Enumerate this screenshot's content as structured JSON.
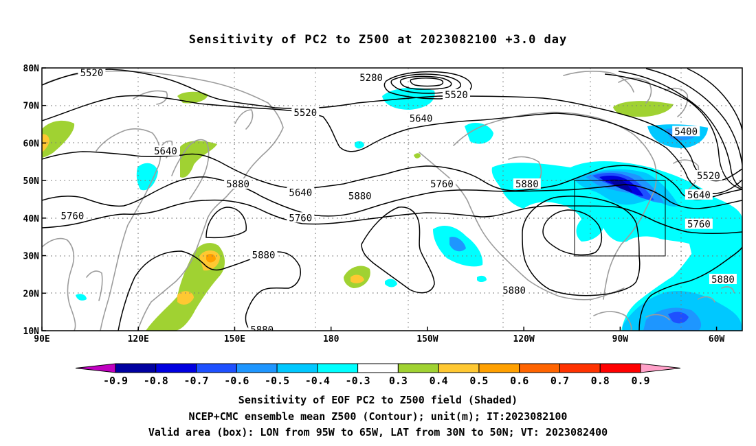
{
  "title": "Sensitivity of PC2 to Z500 at 2023082100 +3.0 day",
  "axes": {
    "lat_ticks": [
      "80N",
      "70N",
      "60N",
      "50N",
      "40N",
      "30N",
      "20N",
      "10N"
    ],
    "lon_ticks": [
      "90E",
      "120E",
      "150E",
      "180",
      "150W",
      "120W",
      "90W",
      "60W"
    ],
    "lon_range_deg_east": [
      90,
      308
    ],
    "lat_range": [
      10,
      80
    ]
  },
  "contour_labels": [
    {
      "text": "5520",
      "lon": 105.5,
      "lat": 78.7
    },
    {
      "text": "5280",
      "lon": 192.5,
      "lat": 77.4
    },
    {
      "text": "5520",
      "lon": 219,
      "lat": 72.9
    },
    {
      "text": "5520",
      "lon": 172,
      "lat": 68.1
    },
    {
      "text": "5640",
      "lon": 208,
      "lat": 66.6
    },
    {
      "text": "5400",
      "lon": 290.5,
      "lat": 63.1
    },
    {
      "text": "5640",
      "lon": 128.5,
      "lat": 57.9
    },
    {
      "text": "5520",
      "lon": 297.5,
      "lat": 51.3
    },
    {
      "text": "5880",
      "lon": 151,
      "lat": 49.1
    },
    {
      "text": "5760",
      "lon": 214.5,
      "lat": 49.1
    },
    {
      "text": "5880",
      "lon": 241,
      "lat": 49.1
    },
    {
      "text": "5640",
      "lon": 170.5,
      "lat": 46.8
    },
    {
      "text": "5880",
      "lon": 189,
      "lat": 45.9
    },
    {
      "text": "5640",
      "lon": 294.5,
      "lat": 46.2
    },
    {
      "text": "5760",
      "lon": 99.5,
      "lat": 40.6
    },
    {
      "text": "5760",
      "lon": 170.5,
      "lat": 40.1
    },
    {
      "text": "5760",
      "lon": 294.5,
      "lat": 38.4
    },
    {
      "text": "5880",
      "lon": 159,
      "lat": 30.2
    },
    {
      "text": "5880",
      "lon": 302,
      "lat": 23.7
    },
    {
      "text": "5880",
      "lon": 237,
      "lat": 20.8
    },
    {
      "text": "5880",
      "lon": 158.5,
      "lat": 10.3
    }
  ],
  "valid_box": {
    "lon_west": "95W",
    "lon_east": "65W",
    "lat_south": "30N",
    "lat_north": "50N"
  },
  "colorbar": {
    "labels": [
      "-0.9",
      "-0.8",
      "-0.7",
      "-0.6",
      "-0.5",
      "-0.4",
      "-0.3",
      "0.3",
      "0.4",
      "0.5",
      "0.6",
      "0.7",
      "0.8",
      "0.9"
    ],
    "colors": [
      "#c000c0",
      "#0000a0",
      "#0000e0",
      "#1e50ff",
      "#1e96ff",
      "#00c8ff",
      "#00ffff",
      "#ffffff",
      "#a0d232",
      "#ffc832",
      "#ffa000",
      "#ff6400",
      "#ff3200",
      "#ff0000",
      "#ffa0c8"
    ]
  },
  "captions": [
    "Sensitivity of EOF PC2 to Z500 field (Shaded)",
    "NCEP+CMC ensemble mean Z500 (Contour); unit(m); IT:2023082100",
    "Valid area (box): LON from 95W to 65W, LAT from 30N to 50N; VT: 2023082400"
  ]
}
